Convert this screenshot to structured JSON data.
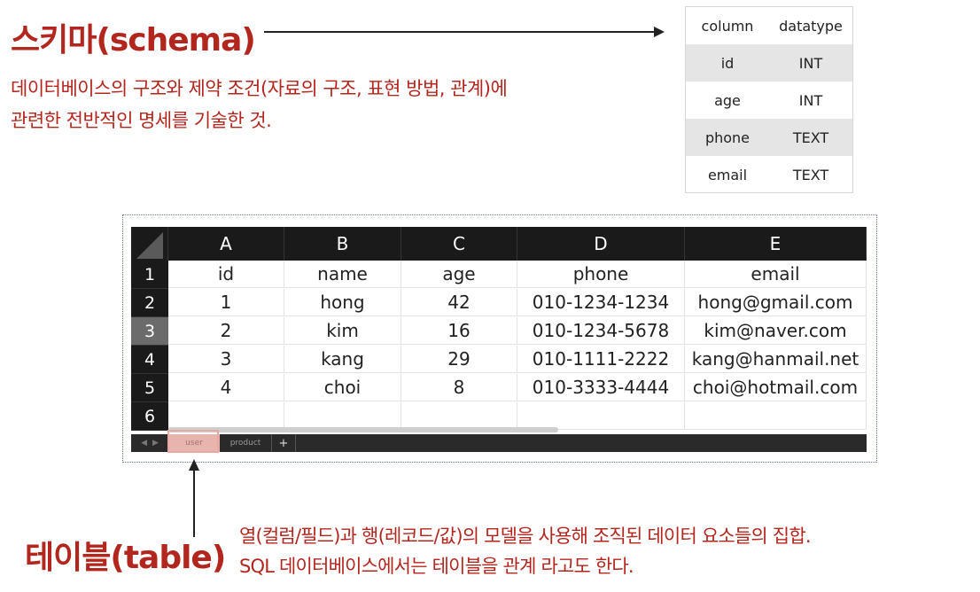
{
  "schema": {
    "title": "스키마(schema)",
    "description_line1": "데이터베이스의 구조와 제약 조건(자료의 구조, 표현 방법, 관계)에",
    "description_line2": "관련한 전반적인 명세를 기술한 것.",
    "headers": [
      "column",
      "datatype"
    ],
    "rows": [
      [
        "id",
        "INT"
      ],
      [
        "age",
        "INT"
      ],
      [
        "phone",
        "TEXT"
      ],
      [
        "email",
        "TEXT"
      ]
    ]
  },
  "sheet": {
    "column_headers": [
      "A",
      "B",
      "C",
      "D",
      "E"
    ],
    "row_numbers": [
      "1",
      "2",
      "3",
      "4",
      "5",
      "6"
    ],
    "rows": [
      [
        "id",
        "name",
        "age",
        "phone",
        "email"
      ],
      [
        "1",
        "hong",
        "42",
        "010-1234-1234",
        "hong@gmail.com"
      ],
      [
        "2",
        "kim",
        "16",
        "010-1234-5678",
        "kim@naver.com"
      ],
      [
        "3",
        "kang",
        "29",
        "010-1111-2222",
        "kang@hanmail.net"
      ],
      [
        "4",
        "choi",
        "8",
        "010-3333-4444",
        "choi@hotmail.com"
      ],
      [
        "",
        "",
        "",
        "",
        ""
      ]
    ],
    "selected_row": "3",
    "tabs": [
      "user",
      "product"
    ],
    "active_tab": "user",
    "add_tab_label": "+"
  },
  "table": {
    "title": "테이블(table)",
    "description_line1": "열(컬럼/필드)과 행(레코드/값)의 모델을 사용해 조직된 데이터 요소들의 집합.",
    "description_line2": "SQL 데이터베이스에서는 테이블을 관계 라고도 한다."
  },
  "colors": {
    "accent_red": "#b3261e",
    "sheet_header": "#1a1a1a",
    "active_tab": "#e7b4ae"
  }
}
